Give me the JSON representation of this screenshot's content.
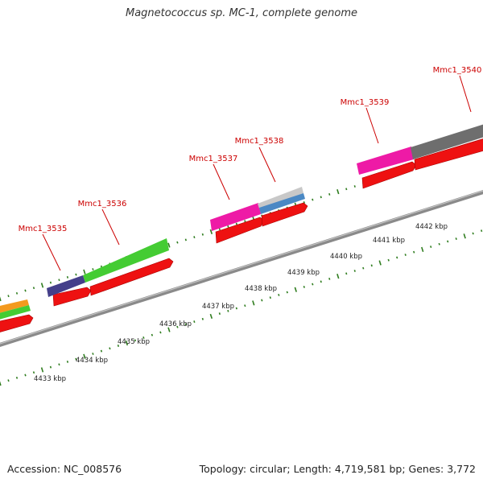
{
  "title": "Magnetococcus sp. MC-1, complete genome",
  "accession": "Accession: NC_008576",
  "topology": "Topology: circular; Length: 4,719,581 bp; Genes: 3,772",
  "colors": {
    "backbone": "#8a8a8a",
    "tick": "#2f7d1f",
    "label": "#cc0000",
    "scale_text": "#222222",
    "cds_forward": "#ee1111",
    "gene_orange": "#f39a1e",
    "gene_green": "#44cc33",
    "gene_navy": "#443f8a",
    "gene_magenta": "#ee1aa6",
    "gene_silver": "#c8c8c8",
    "gene_blue": "#4a88c4",
    "gene_gray": "#6e6e6e"
  },
  "gene_labels": [
    {
      "id": "label-mmc1-3535",
      "text": "Mmc1_3535"
    },
    {
      "id": "label-mmc1-3536",
      "text": "Mmc1_3536"
    },
    {
      "id": "label-mmc1-3537",
      "text": "Mmc1_3537"
    },
    {
      "id": "label-mmc1-3538",
      "text": "Mmc1_3538"
    },
    {
      "id": "label-mmc1-3539",
      "text": "Mmc1_3539"
    },
    {
      "id": "label-mmc1-3540",
      "text": "Mmc1_3540"
    }
  ],
  "scale_labels": [
    "4433 kbp",
    "4434 kbp",
    "4435 kbp",
    "4436 kbp",
    "4437 kbp",
    "4438 kbp",
    "4439 kbp",
    "4440 kbp",
    "4441 kbp",
    "4442 kbp"
  ]
}
